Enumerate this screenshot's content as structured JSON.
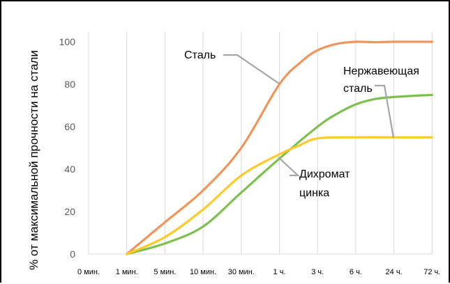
{
  "chart_data": {
    "type": "line",
    "title": "",
    "xlabel": "",
    "ylabel": "% от максимальной прочности на стали",
    "categories": [
      "0 мин.",
      "1 мин.",
      "5 мин.",
      "10 мин.",
      "30 мин.",
      "1 ч.",
      "3 ч.",
      "6 ч.",
      "24 ч.",
      "72 ч."
    ],
    "ylim": [
      0,
      100
    ],
    "yticks": [
      0,
      20,
      40,
      60,
      80,
      100
    ],
    "grid": "vertical",
    "legend": "none (series labelled by annotations)",
    "series": [
      {
        "name": "Сталь",
        "color": "#F0945A",
        "points": [
          [
            1,
            0
          ],
          [
            2,
            15
          ],
          [
            3,
            30
          ],
          [
            4,
            50
          ],
          [
            5,
            80
          ],
          [
            5.6,
            91
          ],
          [
            6,
            96
          ],
          [
            6.5,
            99
          ],
          [
            7,
            100
          ],
          [
            7.5,
            99.8
          ],
          [
            8,
            100
          ],
          [
            9,
            100
          ]
        ]
      },
      {
        "name": "Нержавеющая сталь",
        "color": "#7CC04F",
        "points": [
          [
            1,
            0
          ],
          [
            2,
            5
          ],
          [
            3,
            13
          ],
          [
            4,
            29
          ],
          [
            5,
            45
          ],
          [
            6,
            60
          ],
          [
            6.5,
            66
          ],
          [
            7,
            70.5
          ],
          [
            7.5,
            73
          ],
          [
            8,
            74
          ],
          [
            9,
            75
          ]
        ]
      },
      {
        "name": "Дихромат цинка",
        "color": "#FFC928",
        "points": [
          [
            1,
            0
          ],
          [
            2,
            8
          ],
          [
            3,
            21
          ],
          [
            4,
            37
          ],
          [
            5,
            47
          ],
          [
            5.5,
            51
          ],
          [
            6,
            54.5
          ],
          [
            7,
            55
          ],
          [
            8,
            55
          ],
          [
            9,
            55
          ]
        ]
      }
    ],
    "annotations": [
      {
        "lines": [
          "Сталь"
        ],
        "series": "Сталь"
      },
      {
        "lines": [
          "Нержавеющая",
          "сталь"
        ],
        "series": "Нержавеющая сталь"
      },
      {
        "lines": [
          "Дихромат",
          "цинка"
        ],
        "series": "Дихромат цинка"
      }
    ],
    "leader_color": "#A6A6A6",
    "grid_color": "#D9D9D9"
  }
}
